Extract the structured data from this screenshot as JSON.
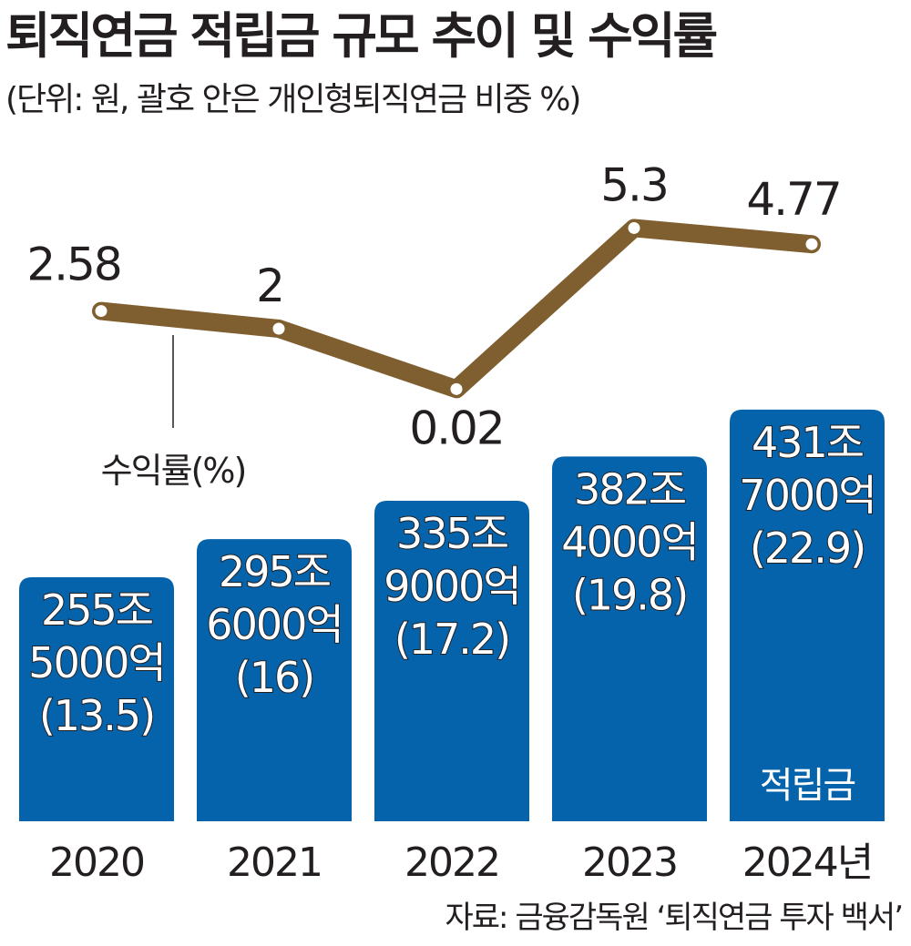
{
  "chart_data": {
    "type": "bar",
    "title": "퇴직연금 적립금 규모 추이 및 수익률",
    "subtitle": "(단위: 원, 괄호 안은 개인형퇴직연금 비중 %)",
    "source": "자료: 금융감독원 ‘퇴직연금 투자 백서’",
    "categories": [
      "2020",
      "2021",
      "2022",
      "2023",
      "2024년"
    ],
    "series": [
      {
        "name": "적립금",
        "type": "bar",
        "color": "#0563ab",
        "values": [
          255.5,
          295.6,
          335.9,
          382.4,
          431.7
        ],
        "labels": [
          [
            "255조",
            "5000억",
            "(13.5)"
          ],
          [
            "295조",
            "6000억",
            "(16)"
          ],
          [
            "335조",
            "9000억",
            "(17.2)"
          ],
          [
            "382조",
            "4000억",
            "(19.8)"
          ],
          [
            "431조",
            "7000억",
            "(22.9)"
          ]
        ]
      },
      {
        "name": "수익률(%)",
        "type": "line",
        "color": "#7f5f2f",
        "values": [
          2.58,
          2,
          0.02,
          5.3,
          4.77
        ],
        "labels": [
          "2.58",
          "2",
          "0.02",
          "5.3",
          "4.77"
        ]
      }
    ]
  }
}
